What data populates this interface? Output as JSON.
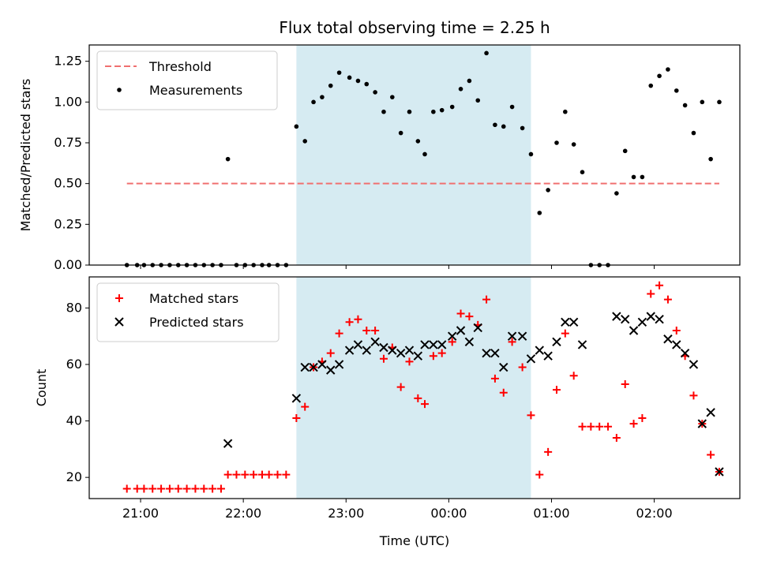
{
  "chart_data": {
    "type": "scatter",
    "title": "Flux total observing time = 2.25 h",
    "xlabel": "Time (UTC)",
    "x_tick_labels": [
      "21:00",
      "22:00",
      "23:00",
      "00:00",
      "01:00",
      "02:00"
    ],
    "x_tick_times": [
      "21:00",
      "22:00",
      "23:00",
      "00:00",
      "01:00",
      "02:00"
    ],
    "highlight_span": {
      "start": "22:31",
      "end": "00:48",
      "color": "#add8e6"
    },
    "panels": [
      {
        "ylabel": "Matched/Predicted stars",
        "ylim": [
          0,
          1.35
        ],
        "y_ticks": [
          0.0,
          0.25,
          0.5,
          0.75,
          1.0,
          1.25
        ],
        "y_tick_labels": [
          "0.00",
          "0.25",
          "0.50",
          "0.75",
          "1.00",
          "1.25"
        ],
        "legend_position": "top-left",
        "series": [
          {
            "name": "Threshold",
            "kind": "dashed-line",
            "color": "#f07070",
            "points": [
              [
                "20:52",
                0.5
              ],
              [
                "02:38",
                0.5
              ]
            ]
          },
          {
            "name": "Measurements",
            "kind": "dot",
            "color": "#000000",
            "points": [
              [
                "20:52",
                0.0
              ],
              [
                "20:58",
                0.0
              ],
              [
                "21:02",
                0.0
              ],
              [
                "21:07",
                0.0
              ],
              [
                "21:12",
                0.0
              ],
              [
                "21:17",
                0.0
              ],
              [
                "21:22",
                0.0
              ],
              [
                "21:27",
                0.0
              ],
              [
                "21:32",
                0.0
              ],
              [
                "21:37",
                0.0
              ],
              [
                "21:42",
                0.0
              ],
              [
                "21:47",
                0.0
              ],
              [
                "21:51",
                0.65
              ],
              [
                "21:56",
                0.0
              ],
              [
                "22:01",
                0.0
              ],
              [
                "22:06",
                0.0
              ],
              [
                "22:11",
                0.0
              ],
              [
                "22:15",
                0.0
              ],
              [
                "22:20",
                0.0
              ],
              [
                "22:25",
                0.0
              ],
              [
                "22:31",
                0.85
              ],
              [
                "22:36",
                0.76
              ],
              [
                "22:41",
                1.0
              ],
              [
                "22:46",
                1.03
              ],
              [
                "22:51",
                1.1
              ],
              [
                "22:56",
                1.18
              ],
              [
                "23:02",
                1.15
              ],
              [
                "23:07",
                1.13
              ],
              [
                "23:12",
                1.11
              ],
              [
                "23:17",
                1.06
              ],
              [
                "23:22",
                0.94
              ],
              [
                "23:27",
                1.03
              ],
              [
                "23:32",
                0.81
              ],
              [
                "23:37",
                0.94
              ],
              [
                "23:42",
                0.76
              ],
              [
                "23:46",
                0.68
              ],
              [
                "23:51",
                0.94
              ],
              [
                "23:56",
                0.95
              ],
              [
                "00:02",
                0.97
              ],
              [
                "00:07",
                1.08
              ],
              [
                "00:12",
                1.13
              ],
              [
                "00:17",
                1.01
              ],
              [
                "00:22",
                1.3
              ],
              [
                "00:27",
                0.86
              ],
              [
                "00:32",
                0.85
              ],
              [
                "00:37",
                0.97
              ],
              [
                "00:43",
                0.84
              ],
              [
                "00:48",
                0.68
              ],
              [
                "00:53",
                0.32
              ],
              [
                "00:58",
                0.46
              ],
              [
                "01:03",
                0.75
              ],
              [
                "01:08",
                0.94
              ],
              [
                "01:13",
                0.74
              ],
              [
                "01:18",
                0.57
              ],
              [
                "01:23",
                0.0
              ],
              [
                "01:28",
                0.0
              ],
              [
                "01:33",
                0.0
              ],
              [
                "01:38",
                0.44
              ],
              [
                "01:43",
                0.7
              ],
              [
                "01:48",
                0.54
              ],
              [
                "01:53",
                0.54
              ],
              [
                "01:58",
                1.1
              ],
              [
                "02:03",
                1.16
              ],
              [
                "02:08",
                1.2
              ],
              [
                "02:13",
                1.07
              ],
              [
                "02:18",
                0.98
              ],
              [
                "02:23",
                0.81
              ],
              [
                "02:28",
                1.0
              ],
              [
                "02:33",
                0.65
              ],
              [
                "02:38",
                1.0
              ]
            ]
          }
        ]
      },
      {
        "ylabel": "Count",
        "ylim": [
          12.5,
          91
        ],
        "y_ticks": [
          20,
          40,
          60,
          80
        ],
        "y_tick_labels": [
          "20",
          "40",
          "60",
          "80"
        ],
        "legend_position": "top-left",
        "series": [
          {
            "name": "Matched stars",
            "kind": "plus",
            "color": "#ff0000",
            "points": [
              [
                "20:52",
                16
              ],
              [
                "20:58",
                16
              ],
              [
                "21:02",
                16
              ],
              [
                "21:07",
                16
              ],
              [
                "21:12",
                16
              ],
              [
                "21:17",
                16
              ],
              [
                "21:22",
                16
              ],
              [
                "21:27",
                16
              ],
              [
                "21:32",
                16
              ],
              [
                "21:37",
                16
              ],
              [
                "21:42",
                16
              ],
              [
                "21:47",
                16
              ],
              [
                "21:51",
                21
              ],
              [
                "21:56",
                21
              ],
              [
                "22:01",
                21
              ],
              [
                "22:06",
                21
              ],
              [
                "22:11",
                21
              ],
              [
                "22:15",
                21
              ],
              [
                "22:20",
                21
              ],
              [
                "22:25",
                21
              ],
              [
                "22:31",
                41
              ],
              [
                "22:36",
                45
              ],
              [
                "22:41",
                59
              ],
              [
                "22:46",
                61
              ],
              [
                "22:51",
                64
              ],
              [
                "22:56",
                71
              ],
              [
                "23:02",
                75
              ],
              [
                "23:07",
                76
              ],
              [
                "23:12",
                72
              ],
              [
                "23:17",
                72
              ],
              [
                "23:22",
                62
              ],
              [
                "23:27",
                66
              ],
              [
                "23:32",
                52
              ],
              [
                "23:37",
                61
              ],
              [
                "23:42",
                48
              ],
              [
                "23:46",
                46
              ],
              [
                "23:51",
                63
              ],
              [
                "23:56",
                64
              ],
              [
                "00:02",
                68
              ],
              [
                "00:07",
                78
              ],
              [
                "00:12",
                77
              ],
              [
                "00:17",
                74
              ],
              [
                "00:22",
                83
              ],
              [
                "00:27",
                55
              ],
              [
                "00:32",
                50
              ],
              [
                "00:37",
                68
              ],
              [
                "00:43",
                59
              ],
              [
                "00:48",
                42
              ],
              [
                "00:53",
                21
              ],
              [
                "00:58",
                29
              ],
              [
                "01:03",
                51
              ],
              [
                "01:08",
                71
              ],
              [
                "01:13",
                56
              ],
              [
                "01:18",
                38
              ],
              [
                "01:23",
                38
              ],
              [
                "01:28",
                38
              ],
              [
                "01:33",
                38
              ],
              [
                "01:38",
                34
              ],
              [
                "01:43",
                53
              ],
              [
                "01:48",
                39
              ],
              [
                "01:53",
                41
              ],
              [
                "01:58",
                85
              ],
              [
                "02:03",
                88
              ],
              [
                "02:08",
                83
              ],
              [
                "02:13",
                72
              ],
              [
                "02:18",
                63
              ],
              [
                "02:23",
                49
              ],
              [
                "02:28",
                39
              ],
              [
                "02:33",
                28
              ],
              [
                "02:38",
                22
              ]
            ]
          },
          {
            "name": "Predicted stars",
            "kind": "x",
            "color": "#000000",
            "points": [
              [
                "21:51",
                32
              ],
              [
                "22:31",
                48
              ],
              [
                "22:36",
                59
              ],
              [
                "22:41",
                59
              ],
              [
                "22:46",
                60
              ],
              [
                "22:51",
                58
              ],
              [
                "22:56",
                60
              ],
              [
                "23:02",
                65
              ],
              [
                "23:07",
                67
              ],
              [
                "23:12",
                65
              ],
              [
                "23:17",
                68
              ],
              [
                "23:22",
                66
              ],
              [
                "23:27",
                65
              ],
              [
                "23:32",
                64
              ],
              [
                "23:37",
                65
              ],
              [
                "23:42",
                63
              ],
              [
                "23:46",
                67
              ],
              [
                "23:51",
                67
              ],
              [
                "23:56",
                67
              ],
              [
                "00:02",
                70
              ],
              [
                "00:07",
                72
              ],
              [
                "00:12",
                68
              ],
              [
                "00:17",
                73
              ],
              [
                "00:22",
                64
              ],
              [
                "00:27",
                64
              ],
              [
                "00:32",
                59
              ],
              [
                "00:37",
                70
              ],
              [
                "00:43",
                70
              ],
              [
                "00:48",
                62
              ],
              [
                "00:53",
                65
              ],
              [
                "00:58",
                63
              ],
              [
                "01:03",
                68
              ],
              [
                "01:08",
                75
              ],
              [
                "01:13",
                75
              ],
              [
                "01:18",
                67
              ],
              [
                "01:38",
                77
              ],
              [
                "01:43",
                76
              ],
              [
                "01:48",
                72
              ],
              [
                "01:53",
                75
              ],
              [
                "01:58",
                77
              ],
              [
                "02:03",
                76
              ],
              [
                "02:08",
                69
              ],
              [
                "02:13",
                67
              ],
              [
                "02:18",
                64
              ],
              [
                "02:23",
                60
              ],
              [
                "02:28",
                39
              ],
              [
                "02:33",
                43
              ],
              [
                "02:38",
                22
              ]
            ]
          }
        ]
      }
    ]
  }
}
